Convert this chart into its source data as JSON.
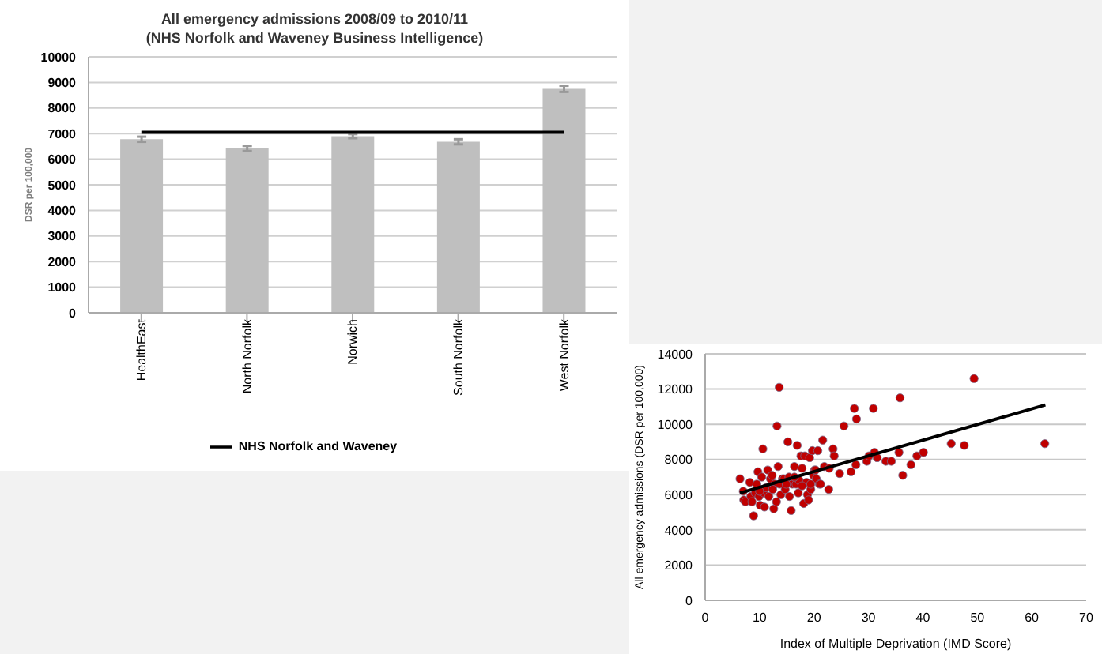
{
  "chart_data": [
    {
      "type": "bar",
      "title": "All emergency admissions 2008/09 to 2010/11",
      "subtitle": "(NHS Norfolk and Waveney Business Intelligence)",
      "ylabel": "DSR per 100,000",
      "categories": [
        "HealthEast",
        "North Norfolk",
        "Norwich",
        "South Norfolk",
        "West Norfolk"
      ],
      "series": [
        {
          "type": "bar",
          "color": "#bfbfbf",
          "values": [
            6780,
            6420,
            6900,
            6680,
            8750
          ],
          "errors": [
            100,
            100,
            80,
            100,
            120
          ]
        },
        {
          "type": "line",
          "name": "NHS Norfolk and Waveney",
          "color": "#000000",
          "marker": "none",
          "values": [
            7050,
            7050,
            7050,
            7050,
            7050
          ]
        }
      ],
      "ylim": [
        0,
        10000
      ],
      "yticks": [
        0,
        1000,
        2000,
        3000,
        4000,
        5000,
        6000,
        7000,
        8000,
        9000,
        10000
      ],
      "grid": "y",
      "legend": "bottom"
    },
    {
      "type": "scatter",
      "xlabel": "Index of Multiple Deprivation (IMD Score)",
      "ylabel": "All emergency admissions (DSR per 100,000)",
      "series": [
        {
          "type": "scatter",
          "color": "#c00000",
          "x": [
            6.4,
            7.0,
            7.1,
            7.4,
            8.2,
            8.4,
            8.6,
            8.9,
            9.2,
            9.5,
            9.7,
            9.9,
            10.1,
            10.4,
            10.6,
            10.8,
            10.9,
            11.2,
            11.5,
            11.7,
            12.0,
            12.3,
            12.6,
            12.8,
            13.1,
            13.2,
            13.4,
            13.6,
            13.7,
            13.9,
            14.2,
            14.5,
            14.7,
            15.2,
            15.4,
            15.5,
            15.8,
            16.0,
            16.4,
            16.7,
            16.9,
            17.1,
            17.3,
            17.6,
            17.8,
            18.1,
            18.3,
            18.6,
            18.8,
            19.0,
            19.2,
            19.4,
            19.7,
            19.9,
            20.1,
            20.4,
            20.7,
            21.0,
            21.6,
            21.9,
            22.7,
            22.8,
            23.5,
            23.7,
            24.7,
            25.5,
            26.8,
            27.4,
            27.7,
            27.8,
            29.7,
            30.1,
            30.9,
            31.1,
            31.6,
            33.2,
            34.2,
            35.6,
            35.8,
            36.3,
            37.8,
            38.9,
            40.1,
            45.2,
            47.6,
            49.4,
            62.4,
            10.0,
            12.4,
            16.4,
            14.9,
            17.8,
            19.4,
            20.3,
            21.2
          ],
          "values": [
            6900,
            6200,
            5700,
            5600,
            6700,
            5900,
            5600,
            4800,
            6100,
            6600,
            7300,
            5900,
            5400,
            7000,
            8600,
            6100,
            5300,
            6400,
            7400,
            5900,
            6900,
            7100,
            5200,
            6600,
            5600,
            9900,
            7600,
            12100,
            6600,
            6000,
            6900,
            6900,
            6300,
            9000,
            7000,
            5900,
            5100,
            6600,
            7600,
            6600,
            8800,
            6100,
            6800,
            8200,
            7500,
            5500,
            8200,
            6700,
            6000,
            5700,
            8100,
            6300,
            8500,
            7100,
            7400,
            6900,
            8500,
            6600,
            9100,
            7600,
            6300,
            7500,
            8600,
            8200,
            7200,
            9900,
            7300,
            10900,
            7700,
            10300,
            7900,
            8200,
            10900,
            8400,
            8100,
            7900,
            7900,
            8400,
            11500,
            7100,
            7700,
            8200,
            8400,
            8900,
            8800,
            12600,
            8900,
            6200,
            6300,
            7000,
            6600,
            6500,
            6600,
            7400,
            6600
          ]
        },
        {
          "type": "line",
          "color": "#000000",
          "marker": "none",
          "x": [
            6.4,
            62.5
          ],
          "values": [
            6100,
            11100
          ]
        }
      ],
      "xlim": [
        0,
        70
      ],
      "xticks": [
        0,
        10,
        20,
        30,
        40,
        50,
        60,
        70
      ],
      "ylim": [
        0,
        14000
      ],
      "yticks": [
        0,
        2000,
        4000,
        6000,
        8000,
        10000,
        12000,
        14000
      ],
      "grid": "y",
      "marker": "circle"
    }
  ]
}
